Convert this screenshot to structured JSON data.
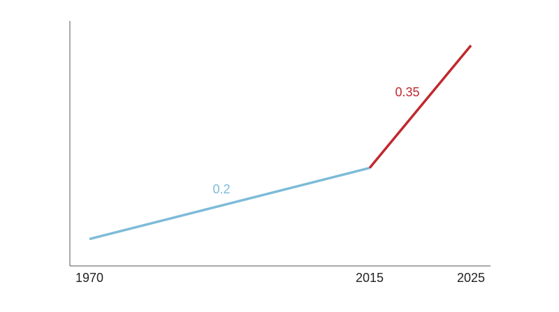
{
  "chart_data": {
    "type": "line",
    "categories": [
      "1970",
      "2015",
      "2025"
    ],
    "series": [
      {
        "color": "#7dbbd8",
        "values": [
          11,
          40,
          null
        ],
        "label": "0.2"
      },
      {
        "color": "#c0282d",
        "values": [
          null,
          40,
          90
        ],
        "label": "0.35"
      }
    ],
    "ylim": [
      0,
      100
    ]
  }
}
